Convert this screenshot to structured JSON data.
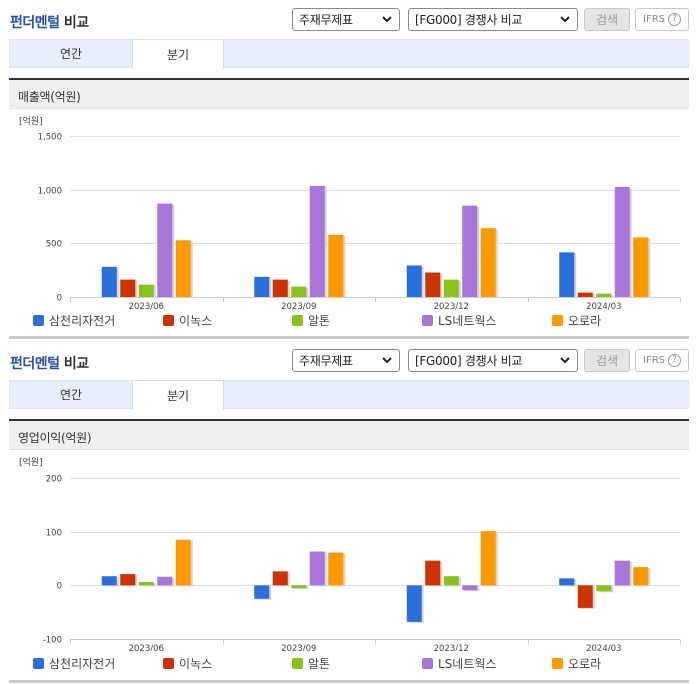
{
  "panels": [
    {
      "title_highlight": "펀더멘털",
      "title_rest": "비교",
      "select_statement": "주재무제표",
      "select_group": "[FG000] 경쟁사 비교",
      "search_label": "검색",
      "ifrs_label": "IFRS",
      "ifrs_help": "?",
      "tabs": [
        {
          "label": "연간",
          "active": false
        },
        {
          "label": "분기",
          "active": true
        }
      ],
      "section_title": "매출액(억원)",
      "unit": "[억원]"
    },
    {
      "title_highlight": "펀더멘털",
      "title_rest": "비교",
      "select_statement": "주재무제표",
      "select_group": "[FG000] 경쟁사 비교",
      "search_label": "검색",
      "ifrs_label": "IFRS",
      "ifrs_help": "?",
      "tabs": [
        {
          "label": "연간",
          "active": false
        },
        {
          "label": "분기",
          "active": true
        }
      ],
      "section_title": "영업이익(억원)",
      "unit": "[억원]"
    }
  ],
  "colors": {
    "삼천리자전거": "#2a6fdb",
    "이녹스": "#cc3300",
    "알톤": "#88c21a",
    "LS네트웍스": "#a875d9",
    "오로라": "#ff9900"
  },
  "chart_data": [
    {
      "type": "bar",
      "title": "매출액(억원)",
      "xlabel": "",
      "ylabel": "[억원]",
      "categories": [
        "2023/06",
        "2023/09",
        "2023/12",
        "2024/03"
      ],
      "yticks": [
        0,
        500,
        1000,
        1500
      ],
      "ytick_labels": [
        "0",
        "500",
        "1,000",
        "1,500"
      ],
      "ylim": [
        0,
        1500
      ],
      "grid": true,
      "legend_position": "bottom",
      "series": [
        {
          "name": "삼천리자전거",
          "values": [
            281,
            188,
            294,
            416
          ]
        },
        {
          "name": "이녹스",
          "values": [
            162,
            162,
            228,
            41
          ]
        },
        {
          "name": "알톤",
          "values": [
            115,
            97,
            162,
            31
          ]
        },
        {
          "name": "LS네트웍스",
          "values": [
            870,
            1035,
            851,
            1025
          ]
        },
        {
          "name": "오로라",
          "values": [
            528,
            579,
            641,
            556
          ]
        }
      ]
    },
    {
      "type": "bar",
      "title": "영업이익(억원)",
      "xlabel": "",
      "ylabel": "[억원]",
      "categories": [
        "2023/06",
        "2023/09",
        "2023/12",
        "2024/03"
      ],
      "yticks": [
        -100,
        0,
        100,
        200
      ],
      "ytick_labels": [
        "-100",
        "0",
        "100",
        "200"
      ],
      "ylim": [
        -100,
        200
      ],
      "grid": true,
      "legend_position": "bottom",
      "series": [
        {
          "name": "삼천리자전거",
          "values": [
            17,
            -25,
            -68,
            13
          ]
        },
        {
          "name": "이녹스",
          "values": [
            21,
            26,
            46,
            -42
          ]
        },
        {
          "name": "알톤",
          "values": [
            6,
            -5,
            17,
            -11
          ]
        },
        {
          "name": "LS네트웍스",
          "values": [
            16,
            63,
            -9,
            46
          ]
        },
        {
          "name": "오로라",
          "values": [
            85,
            61,
            101,
            34
          ]
        }
      ]
    }
  ]
}
